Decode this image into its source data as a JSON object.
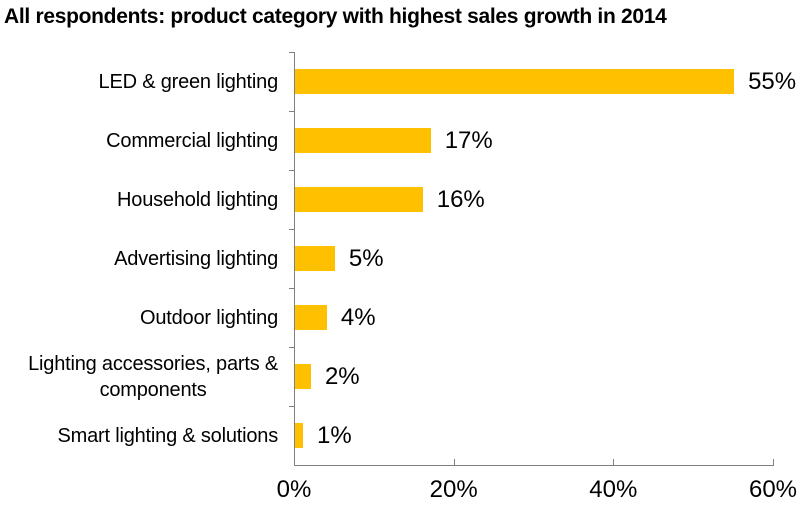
{
  "title": "All respondents: product category with highest sales growth in 2014",
  "chart_data": {
    "type": "bar",
    "orientation": "horizontal",
    "title": "All respondents: product category with highest sales growth in 2014",
    "categories": [
      "LED & green lighting",
      "Commercial lighting",
      "Household lighting",
      "Advertising lighting",
      "Outdoor lighting",
      "Lighting accessories, parts &\ncomponents",
      "Smart lighting & solutions"
    ],
    "values": [
      55,
      17,
      16,
      5,
      4,
      2,
      1
    ],
    "value_labels": [
      "55%",
      "17%",
      "16%",
      "5%",
      "4%",
      "2%",
      "1%"
    ],
    "xlabel": "",
    "ylabel": "",
    "xlim": [
      0,
      60
    ],
    "x_tick_values": [
      0,
      20,
      40,
      60
    ],
    "x_tick_labels": [
      "0%",
      "20%",
      "40%",
      "60%"
    ],
    "grid": "off",
    "legend": "none",
    "bar_color": "#FFC000",
    "axis_color": "#808080",
    "text_color": "#000000",
    "background_color": "#FFFFFF"
  }
}
